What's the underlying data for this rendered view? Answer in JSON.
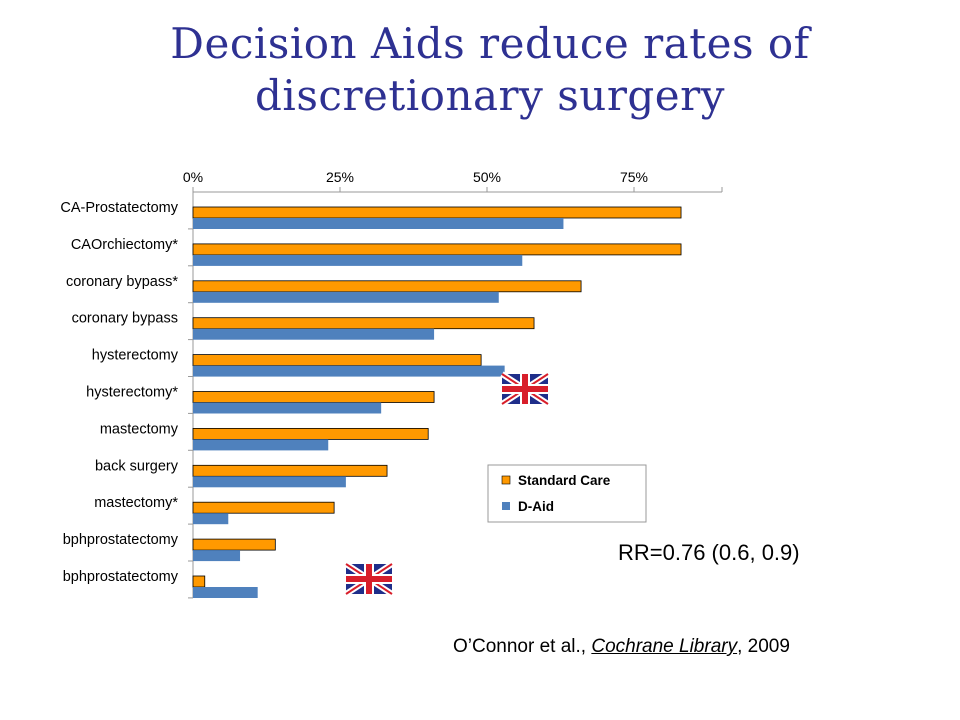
{
  "slide": {
    "title_line1": "Decision Aids reduce rates of",
    "title_line2": "discretionary surgery",
    "rr_text": "RR=0.76 (0.6, 0.9)",
    "citation": {
      "authors": "O’Connor et al., ",
      "journal": "Cochrane Library",
      "year": ", 2009"
    },
    "flag_icon": "uk-flag-icon"
  },
  "chart_data": {
    "type": "bar",
    "orientation": "horizontal",
    "x_tick_labels": [
      "0%",
      "25%",
      "50%",
      "75%"
    ],
    "x_ticks": [
      0,
      25,
      50,
      75
    ],
    "xlim": [
      0,
      90
    ],
    "categories": [
      "CA-Prostatectomy",
      "CAOrchiectomy*",
      "coronary bypass*",
      "coronary bypass",
      "hysterectomy",
      "hysterectomy*",
      "mastectomy",
      "back surgery",
      "mastectomy*",
      "bphprostatectomy",
      "bphprostatectomy"
    ],
    "series": [
      {
        "name": "Standard Care",
        "color": "#ff9900",
        "values": [
          83,
          83,
          66,
          58,
          49,
          41,
          40,
          33,
          24,
          14,
          2
        ]
      },
      {
        "name": "D-Aid",
        "color": "#4f81bd",
        "values": [
          63,
          56,
          52,
          41,
          53,
          32,
          23,
          26,
          6,
          8,
          11
        ]
      }
    ],
    "flagged_rows": [
      4,
      10
    ],
    "legend_position": "lower-right",
    "grid": false
  }
}
